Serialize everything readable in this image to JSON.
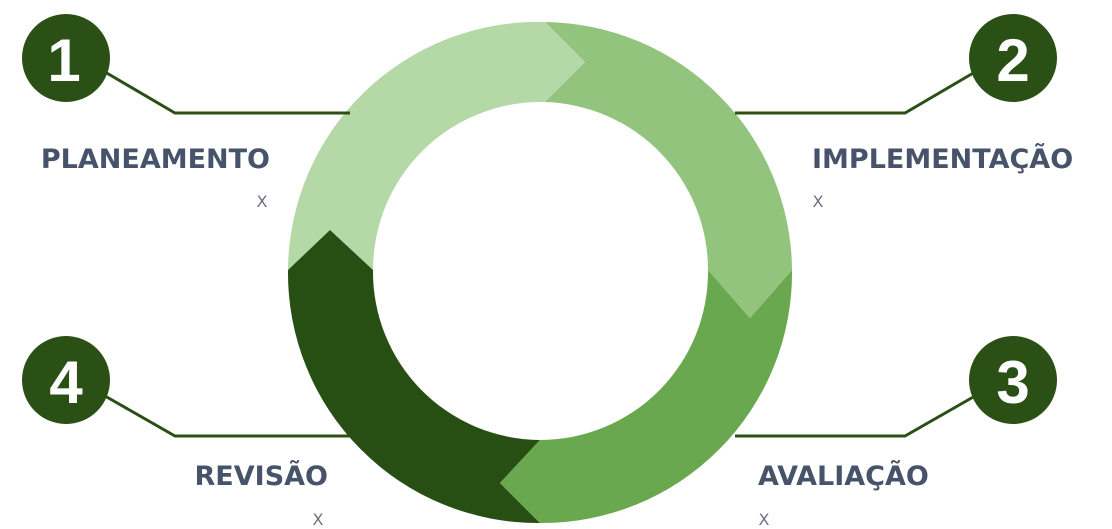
{
  "colors": {
    "segment_1": "#b5d8a7",
    "segment_2": "#93c47d",
    "segment_3": "#6aa84f",
    "segment_4": "#274e13",
    "badge": "#2a5016",
    "connector": "#2a5016",
    "label_text": "#46536a",
    "note_text": "#6b7280"
  },
  "stages": [
    {
      "number": "1",
      "label": "PLANEAMENTO",
      "note": "X"
    },
    {
      "number": "2",
      "label": "IMPLEMENTAÇÃO",
      "note": "X"
    },
    {
      "number": "3",
      "label": "AVALIAÇÃO",
      "note": "X"
    },
    {
      "number": "4",
      "label": "REVISÃO",
      "note": "X"
    }
  ]
}
